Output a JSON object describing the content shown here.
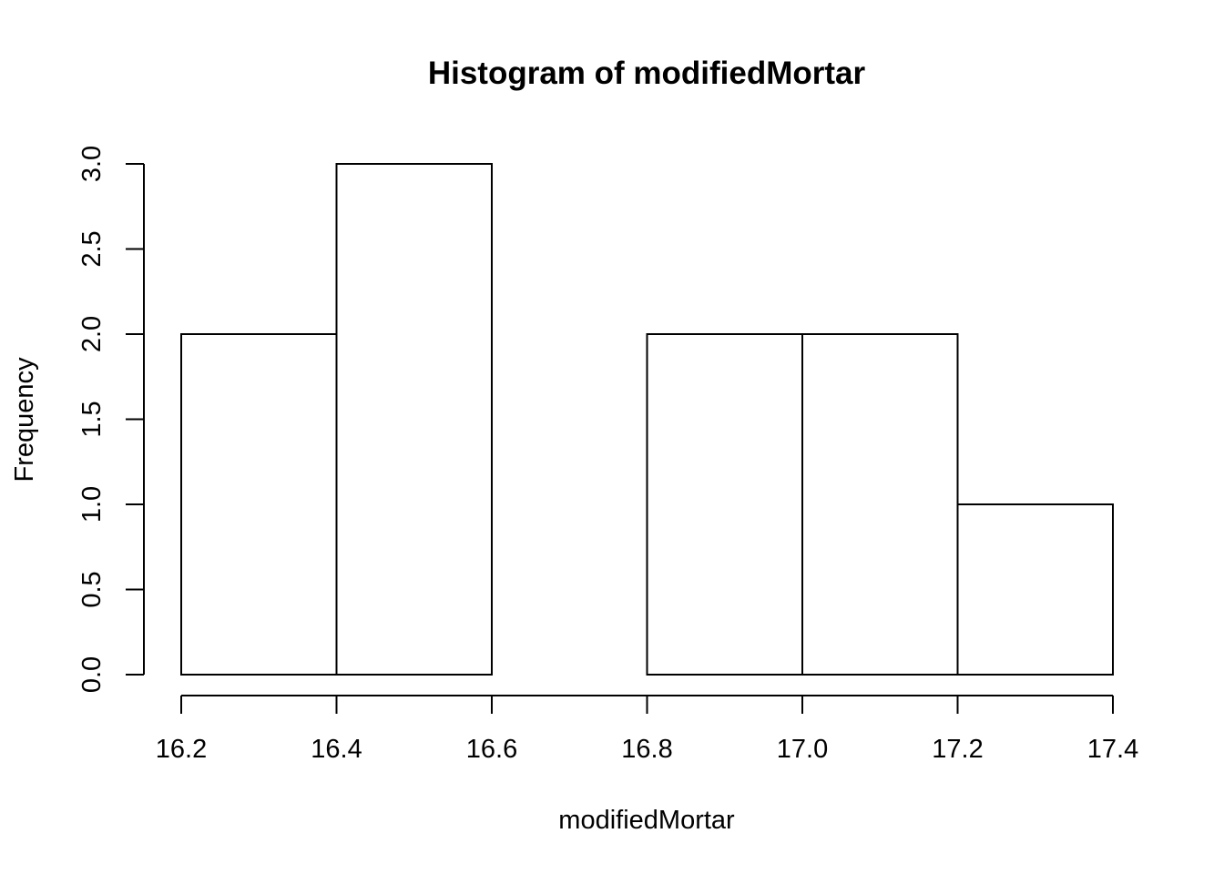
{
  "chart_data": {
    "type": "bar",
    "title": "Histogram of modifiedMortar",
    "xlabel": "modifiedMortar",
    "ylabel": "Frequency",
    "bins": [
      {
        "start": 16.2,
        "end": 16.4,
        "count": 2
      },
      {
        "start": 16.4,
        "end": 16.6,
        "count": 3
      },
      {
        "start": 16.6,
        "end": 16.8,
        "count": 0
      },
      {
        "start": 16.8,
        "end": 17.0,
        "count": 2
      },
      {
        "start": 17.0,
        "end": 17.2,
        "count": 2
      },
      {
        "start": 17.2,
        "end": 17.4,
        "count": 1
      }
    ],
    "xlim": [
      16.2,
      17.4
    ],
    "ylim": [
      0,
      3
    ],
    "x_ticks": [
      "16.2",
      "16.4",
      "16.6",
      "16.8",
      "17.0",
      "17.2",
      "17.4"
    ],
    "y_ticks": [
      "0.0",
      "0.5",
      "1.0",
      "1.5",
      "2.0",
      "2.5",
      "3.0"
    ],
    "grid": false,
    "legend": "none",
    "bar_fill": "#ffffff",
    "bar_stroke": "#000000"
  }
}
